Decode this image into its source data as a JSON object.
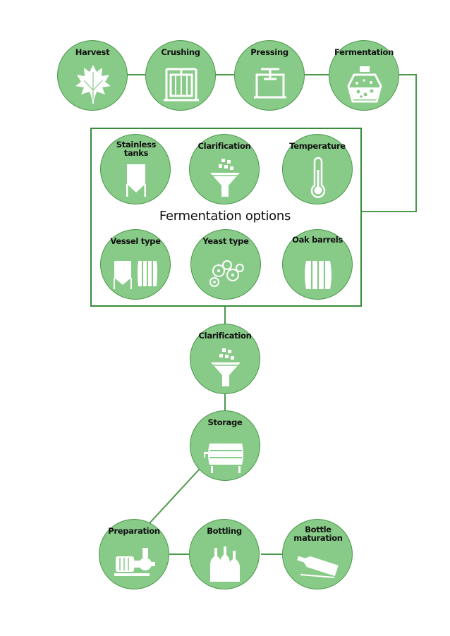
{
  "diagram": {
    "main_steps": [
      "Harvest",
      "Crushing",
      "Pressing",
      "Fermentation"
    ],
    "fermentation_options": {
      "title": "Fermentation options",
      "items": [
        "Stainless tanks",
        "Clarification",
        "Temperature",
        "Vessel type",
        "Yeast type",
        "Oak barrels"
      ]
    },
    "post_steps": [
      "Clarification",
      "Storage"
    ],
    "final_steps": [
      "Preparation",
      "Bottling",
      "Bottle maturation"
    ],
    "colors": {
      "node_fill": "#88ca88",
      "line": "#4a9a4a",
      "icon": "#ffffff"
    }
  }
}
